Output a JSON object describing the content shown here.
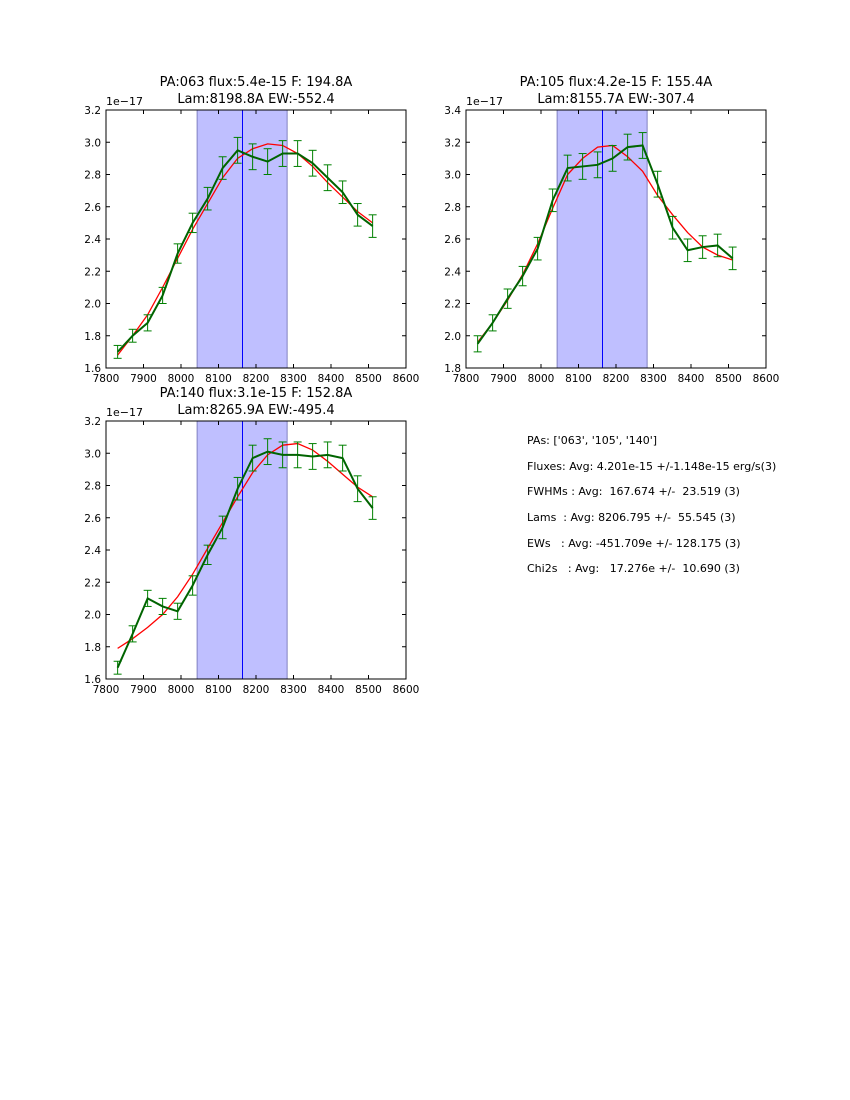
{
  "chart_data": [
    {
      "type": "line",
      "title": [
        "PA:063 flux:5.4e-15 F: 194.8A",
        "Lam:8198.8A EW:-552.4"
      ],
      "offset_label": "1e−17",
      "xlim": [
        7800,
        8600
      ],
      "ylim": [
        1.6,
        3.2
      ],
      "xticks": [
        "7800",
        "7900",
        "8000",
        "8100",
        "8200",
        "8300",
        "8400",
        "8500",
        "8600"
      ],
      "yticks": [
        "1.6",
        "1.8",
        "2.0",
        "2.2",
        "2.4",
        "2.6",
        "2.8",
        "3.0",
        "3.2"
      ],
      "band": [
        8043,
        8283
      ],
      "center_line": 8164,
      "x": [
        7831,
        7871,
        7911,
        7951,
        7991,
        8031,
        8071,
        8111,
        8151,
        8191,
        8231,
        8271,
        8311,
        8351,
        8391,
        8431,
        8471,
        8511
      ],
      "series": [
        {
          "name": "data",
          "color": "#006400",
          "values": [
            1.7,
            1.8,
            1.88,
            2.05,
            2.31,
            2.5,
            2.65,
            2.84,
            2.95,
            2.91,
            2.88,
            2.93,
            2.93,
            2.87,
            2.78,
            2.69,
            2.55,
            2.48
          ],
          "errors": [
            0.04,
            0.04,
            0.05,
            0.05,
            0.06,
            0.06,
            0.07,
            0.07,
            0.08,
            0.08,
            0.08,
            0.08,
            0.08,
            0.08,
            0.08,
            0.07,
            0.07,
            0.07
          ]
        },
        {
          "name": "model",
          "color": "#ff0000",
          "values": [
            1.68,
            1.8,
            1.93,
            2.1,
            2.28,
            2.46,
            2.62,
            2.78,
            2.9,
            2.96,
            2.99,
            2.98,
            2.93,
            2.85,
            2.75,
            2.66,
            2.57,
            2.5
          ]
        }
      ]
    },
    {
      "type": "line",
      "title": [
        "PA:105 flux:4.2e-15 F: 155.4A",
        "Lam:8155.7A EW:-307.4"
      ],
      "offset_label": "1e−17",
      "xlim": [
        7800,
        8600
      ],
      "ylim": [
        1.8,
        3.4
      ],
      "xticks": [
        "7800",
        "7900",
        "8000",
        "8100",
        "8200",
        "8300",
        "8400",
        "8500",
        "8600"
      ],
      "yticks": [
        "1.8",
        "2.0",
        "2.2",
        "2.4",
        "2.6",
        "2.8",
        "3.0",
        "3.2",
        "3.4"
      ],
      "band": [
        8043,
        8283
      ],
      "center_line": 8164,
      "x": [
        7831,
        7871,
        7911,
        7951,
        7991,
        8031,
        8071,
        8111,
        8151,
        8191,
        8231,
        8271,
        8311,
        8351,
        8391,
        8431,
        8471,
        8511
      ],
      "series": [
        {
          "name": "data",
          "color": "#006400",
          "values": [
            1.95,
            2.08,
            2.23,
            2.37,
            2.54,
            2.84,
            3.04,
            3.05,
            3.06,
            3.1,
            3.17,
            3.18,
            2.94,
            2.67,
            2.53,
            2.55,
            2.56,
            2.48
          ],
          "errors": [
            0.05,
            0.05,
            0.06,
            0.06,
            0.07,
            0.07,
            0.08,
            0.08,
            0.08,
            0.08,
            0.08,
            0.08,
            0.08,
            0.07,
            0.07,
            0.07,
            0.07,
            0.07
          ]
        },
        {
          "name": "model",
          "color": "#ff0000",
          "values": [
            1.96,
            2.08,
            2.22,
            2.38,
            2.57,
            2.79,
            3.0,
            3.1,
            3.17,
            3.18,
            3.11,
            3.02,
            2.87,
            2.75,
            2.64,
            2.55,
            2.5,
            2.47
          ]
        }
      ]
    },
    {
      "type": "line",
      "title": [
        "PA:140 flux:3.1e-15 F: 152.8A",
        "Lam:8265.9A EW:-495.4"
      ],
      "offset_label": "1e−17",
      "xlim": [
        7800,
        8600
      ],
      "ylim": [
        1.6,
        3.2
      ],
      "xticks": [
        "7800",
        "7900",
        "8000",
        "8100",
        "8200",
        "8300",
        "8400",
        "8500",
        "8600"
      ],
      "yticks": [
        "1.6",
        "1.8",
        "2.0",
        "2.2",
        "2.4",
        "2.6",
        "2.8",
        "3.0",
        "3.2"
      ],
      "band": [
        8043,
        8283
      ],
      "center_line": 8164,
      "x": [
        7831,
        7871,
        7911,
        7951,
        7991,
        8031,
        8071,
        8111,
        8151,
        8191,
        8231,
        8271,
        8311,
        8351,
        8391,
        8431,
        8471,
        8511
      ],
      "series": [
        {
          "name": "data",
          "color": "#006400",
          "values": [
            1.67,
            1.88,
            2.1,
            2.05,
            2.02,
            2.18,
            2.37,
            2.54,
            2.78,
            2.97,
            3.01,
            2.99,
            2.99,
            2.98,
            2.99,
            2.97,
            2.78,
            2.66
          ],
          "errors": [
            0.04,
            0.05,
            0.05,
            0.05,
            0.05,
            0.06,
            0.06,
            0.07,
            0.07,
            0.08,
            0.08,
            0.08,
            0.08,
            0.08,
            0.08,
            0.08,
            0.08,
            0.07
          ]
        },
        {
          "name": "model",
          "color": "#ff0000",
          "values": [
            1.79,
            1.85,
            1.92,
            2.0,
            2.11,
            2.25,
            2.41,
            2.57,
            2.73,
            2.88,
            2.99,
            3.05,
            3.06,
            3.02,
            2.95,
            2.87,
            2.79,
            2.73
          ]
        }
      ]
    }
  ],
  "colors": {
    "band": "#bfbfff",
    "band_edge": "#8080c0",
    "center_line": "#0000ff"
  },
  "stats": [
    "PAs: ['063', '105', '140']",
    "Fluxes: Avg: 4.201e-15 +/-1.148e-15 erg/s(3)",
    "FWHMs : Avg:  167.674 +/-  23.519 (3)",
    "Lams  : Avg: 8206.795 +/-  55.545 (3)",
    "EWs   : Avg: -451.709e +/- 128.175 (3)",
    "Chi2s   : Avg:   17.276e +/-  10.690 (3)"
  ]
}
